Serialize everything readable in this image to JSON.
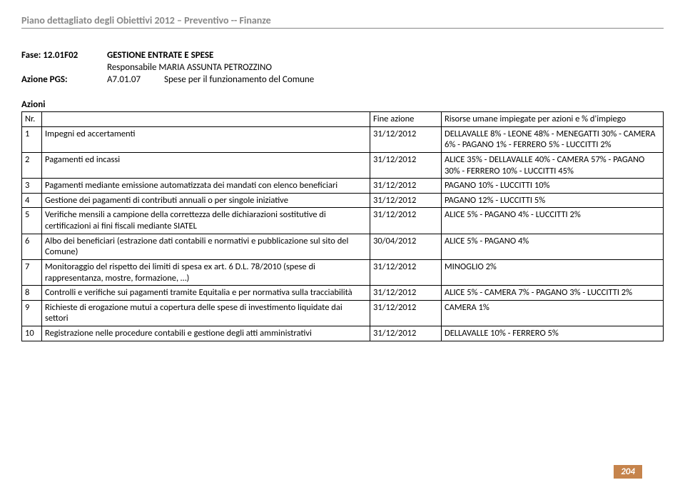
{
  "header": "Piano dettagliato degli Obiettivi 2012 – Preventivo -- Finanze",
  "meta": {
    "fase_label": "Fase: 12.01F02",
    "fase_value": "GESTIONE ENTRATE E SPESE",
    "responsabile": "Responsabile MARIA ASSUNTA PETROZZINO",
    "azione_pgs_label": "Azione PGS:",
    "azione_pgs_code": "A7.01.07",
    "azione_pgs_desc": "Spese per il funzionamento del Comune"
  },
  "azioni_label": "Azioni",
  "table": {
    "headers": {
      "nr": "Nr.",
      "desc": "",
      "fine": "Fine azione",
      "risorse": "Risorse umane impiegate per azioni e % d'impiego"
    },
    "rows": [
      {
        "nr": "1",
        "desc": "Impegni ed accertamenti",
        "fine": "31/12/2012",
        "ris": "DELLAVALLE 8% - LEONE 48% - MENEGATTI 30% - CAMERA 6% - PAGANO 1% - FERRERO 5% - LUCCITTI 2%"
      },
      {
        "nr": "2",
        "desc": "Pagamenti ed incassi",
        "fine": "31/12/2012",
        "ris": "ALICE 35% - DELLAVALLE 40% - CAMERA 57% - PAGANO 30% - FERRERO 10% - LUCCITTI 45%"
      },
      {
        "nr": "3",
        "desc": "Pagamenti mediante emissione automatizzata dei mandati con elenco beneficiari",
        "fine": "31/12/2012",
        "ris": "PAGANO 10%  - LUCCITTI 10%"
      },
      {
        "nr": "4",
        "desc": "Gestione dei pagamenti di contributi annuali o per singole iniziative",
        "fine": "31/12/2012",
        "ris": "PAGANO 12%  - LUCCITTI 5%"
      },
      {
        "nr": "5",
        "desc": "Verifiche mensili a campione della correttezza delle dichiarazioni sostitutive di certificazioni ai fini fiscali mediante SIATEL",
        "fine": "31/12/2012",
        "ris": "ALICE 5%  - PAGANO 4% - LUCCITTI 2%"
      },
      {
        "nr": "6",
        "desc": "Albo dei beneficiari (estrazione dati contabili e normativi e pubblicazione sul sito del Comune)",
        "fine": "30/04/2012",
        "ris": "ALICE 5%  - PAGANO 4%"
      },
      {
        "nr": "7",
        "desc": "Monitoraggio del rispetto dei limiti di spesa ex art. 6 D.L. 78/2010 (spese di rappresentanza, mostre, formazione, …)",
        "fine": "31/12/2012",
        "ris": "MINOGLIO 2%"
      },
      {
        "nr": "8",
        "desc": "Controlli e verifiche sui pagamenti tramite Equitalia e per normativa sulla tracciabilità",
        "fine": "31/12/2012",
        "ris": "ALICE 5%  - CAMERA 7% - PAGANO 3% - LUCCITTI 2%"
      },
      {
        "nr": "9",
        "desc": "Richieste di erogazione mutui a copertura delle spese di investimento liquidate dai settori",
        "fine": "31/12/2012",
        "ris": "CAMERA 1%"
      },
      {
        "nr": "10",
        "desc": "Registrazione nelle procedure contabili e gestione degli atti amministrativi",
        "fine": "31/12/2012",
        "ris": "DELLAVALLE 10% - FERRERO 5%"
      }
    ]
  },
  "page_number": "204"
}
